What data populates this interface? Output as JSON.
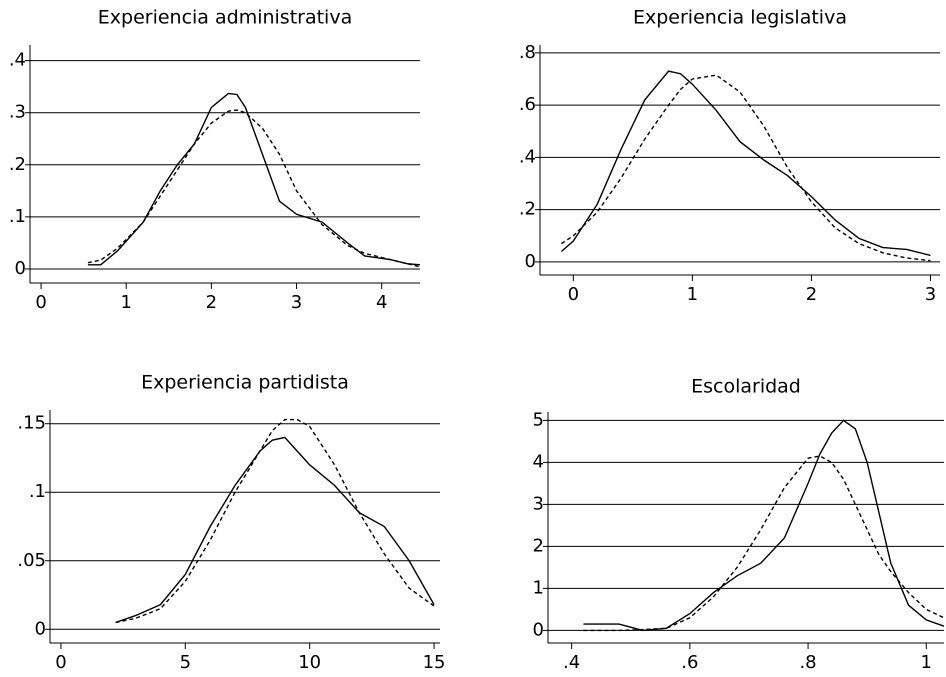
{
  "chart_data": [
    {
      "type": "line",
      "title": "Experiencia administrativa",
      "x": [
        0.55,
        0.7,
        0.9,
        1.2,
        1.4,
        1.6,
        1.8,
        2.0,
        2.2,
        2.3,
        2.4,
        2.6,
        2.8,
        3.0,
        3.3,
        3.6,
        3.8,
        4.1,
        4.3,
        4.45
      ],
      "series": [
        {
          "color": "#000",
          "style": "solid",
          "values": [
            0.008,
            0.008,
            0.035,
            0.09,
            0.15,
            0.2,
            0.24,
            0.31,
            0.337,
            0.335,
            0.31,
            0.22,
            0.13,
            0.105,
            0.09,
            0.05,
            0.025,
            0.018,
            0.01,
            0.008
          ]
        },
        {
          "color": "#000",
          "style": "dashed",
          "values": [
            0.012,
            0.017,
            0.04,
            0.09,
            0.14,
            0.19,
            0.24,
            0.28,
            0.303,
            0.305,
            0.3,
            0.27,
            0.22,
            0.15,
            0.085,
            0.045,
            0.03,
            0.018,
            0.01,
            0.004
          ]
        }
      ],
      "xlim": [
        -0.13,
        4.45
      ],
      "ylim": [
        -0.027,
        0.43
      ],
      "xticks": [
        0,
        1,
        2,
        3,
        4
      ],
      "yticks": [
        0,
        {
          "value": 0.1,
          "label": ".1"
        },
        {
          "value": 0.2,
          "label": ".2"
        },
        {
          "value": 0.3,
          "label": ".3"
        },
        {
          "value": 0.4,
          "label": ".4"
        }
      ],
      "grid": true
    },
    {
      "type": "line",
      "title": "Experiencia legislativa",
      "x": [
        -0.1,
        0,
        0.2,
        0.4,
        0.6,
        0.8,
        0.9,
        1.0,
        1.2,
        1.4,
        1.6,
        1.8,
        2.0,
        2.2,
        2.4,
        2.6,
        2.8,
        3.0
      ],
      "series": [
        {
          "color": "#000",
          "style": "solid",
          "values": [
            0.04,
            0.08,
            0.22,
            0.43,
            0.62,
            0.73,
            0.72,
            0.68,
            0.58,
            0.46,
            0.39,
            0.33,
            0.25,
            0.16,
            0.09,
            0.055,
            0.048,
            0.025
          ]
        },
        {
          "color": "#000",
          "style": "dashed",
          "values": [
            0.07,
            0.1,
            0.19,
            0.32,
            0.47,
            0.6,
            0.66,
            0.7,
            0.715,
            0.65,
            0.52,
            0.36,
            0.23,
            0.13,
            0.07,
            0.035,
            0.015,
            0.005
          ]
        }
      ],
      "xlim": [
        -0.28,
        3.08
      ],
      "ylim": [
        -0.05,
        0.83
      ],
      "xticks": [
        0,
        1,
        2,
        3
      ],
      "yticks": [
        0,
        {
          "value": 0.2,
          "label": ".2"
        },
        {
          "value": 0.4,
          "label": ".4"
        },
        {
          "value": 0.6,
          "label": ".6"
        },
        {
          "value": 0.8,
          "label": ".8"
        }
      ],
      "grid": true
    },
    {
      "type": "line",
      "title": "Experiencia partidista",
      "x": [
        2.2,
        3,
        4,
        5,
        6,
        7,
        8,
        8.5,
        9,
        9.5,
        10,
        11,
        12,
        13,
        14,
        15
      ],
      "series": [
        {
          "color": "#000",
          "style": "solid",
          "values": [
            0.005,
            0.01,
            0.018,
            0.04,
            0.075,
            0.105,
            0.13,
            0.138,
            0.14,
            0.13,
            0.12,
            0.105,
            0.085,
            0.075,
            0.05,
            0.018
          ]
        },
        {
          "color": "#000",
          "style": "dashed",
          "values": [
            0.005,
            0.008,
            0.015,
            0.035,
            0.065,
            0.1,
            0.13,
            0.145,
            0.153,
            0.153,
            0.148,
            0.12,
            0.085,
            0.055,
            0.03,
            0.017
          ]
        }
      ],
      "xlim": [
        -0.44,
        15.24
      ],
      "ylim": [
        -0.01,
        0.16
      ],
      "xticks": [
        0,
        5,
        10,
        15
      ],
      "yticks": [
        0,
        {
          "value": 0.05,
          "label": ".05"
        },
        {
          "value": 0.1,
          "label": ".1"
        },
        {
          "value": 0.15,
          "label": ".15"
        }
      ],
      "grid": true
    },
    {
      "type": "line",
      "title": "Escolaridad",
      "x": [
        0.42,
        0.48,
        0.52,
        0.56,
        0.6,
        0.64,
        0.68,
        0.72,
        0.76,
        0.8,
        0.82,
        0.84,
        0.86,
        0.88,
        0.9,
        0.92,
        0.94,
        0.97,
        1.0,
        1.03
      ],
      "series": [
        {
          "color": "#000",
          "style": "solid",
          "values": [
            0.15,
            0.15,
            0.0,
            0.05,
            0.4,
            0.9,
            1.3,
            1.6,
            2.2,
            3.5,
            4.2,
            4.7,
            5.0,
            4.8,
            4.0,
            2.8,
            1.6,
            0.6,
            0.25,
            0.1
          ]
        },
        {
          "color": "#000",
          "style": "dashed",
          "values": [
            0.0,
            0.0,
            0.02,
            0.05,
            0.3,
            0.8,
            1.5,
            2.4,
            3.4,
            4.1,
            4.15,
            4.0,
            3.6,
            3.0,
            2.4,
            1.8,
            1.4,
            0.9,
            0.5,
            0.3
          ]
        }
      ],
      "xlim": [
        0.36,
        1.03
      ],
      "ylim": [
        -0.3,
        5.2
      ],
      "xticks": [
        {
          "value": 0.4,
          "label": ".4"
        },
        {
          "value": 0.6,
          "label": ".6"
        },
        {
          "value": 0.8,
          "label": ".8"
        },
        1
      ],
      "yticks": [
        0,
        1,
        2,
        3,
        4,
        5
      ],
      "grid": true
    }
  ]
}
